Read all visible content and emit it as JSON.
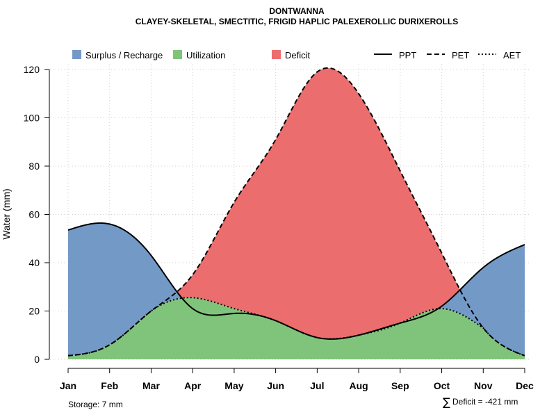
{
  "chart_data": {
    "type": "area",
    "title": "DONTWANNA",
    "subtitle": "CLAYEY-SKELETAL, SMECTITIC, FRIGID HAPLIC PALEXEROLLIC DURIXEROLLS",
    "xlabel": "",
    "ylabel": "Water (mm)",
    "ylim": [
      0,
      120
    ],
    "yticks": [
      0,
      20,
      40,
      60,
      80,
      100,
      120
    ],
    "grid": true,
    "categories": [
      "Jan",
      "Feb",
      "Mar",
      "Apr",
      "May",
      "Jun",
      "Jul",
      "Aug",
      "Sep",
      "Oct",
      "Nov",
      "Dec"
    ],
    "series": [
      {
        "name": "PPT",
        "style": "solid",
        "values": [
          53.5,
          56,
          43,
          21,
          19,
          16,
          9,
          10,
          15,
          22,
          38,
          47.5
        ]
      },
      {
        "name": "PET",
        "style": "dashed",
        "values": [
          1.5,
          6,
          20,
          35,
          65,
          91,
          119,
          110,
          78,
          44,
          13,
          1.5
        ]
      },
      {
        "name": "AET",
        "style": "dotted",
        "values": [
          1.5,
          6,
          20,
          25.5,
          21,
          16,
          9,
          10,
          15,
          21,
          13,
          1.5
        ]
      }
    ],
    "legend": {
      "placement": "top",
      "areas": [
        {
          "label": "Surplus / Recharge",
          "color": "#7399c7"
        },
        {
          "label": "Utilization",
          "color": "#80c47c"
        },
        {
          "label": "Deficit",
          "color": "#eb6d6d"
        }
      ],
      "lines": [
        {
          "label": "PPT",
          "style": "solid"
        },
        {
          "label": "PET",
          "style": "dashed"
        },
        {
          "label": "AET",
          "style": "dotted"
        }
      ]
    },
    "annotations": {
      "storage": "Storage: 7 mm",
      "deficit_symbol": "∑",
      "deficit": "Deficit = -421 mm"
    }
  },
  "colors": {
    "surplus": "#7399c7",
    "utilization": "#80c47c",
    "deficit": "#eb6d6d",
    "grid": "#cfcfcf",
    "line": "#000000"
  }
}
